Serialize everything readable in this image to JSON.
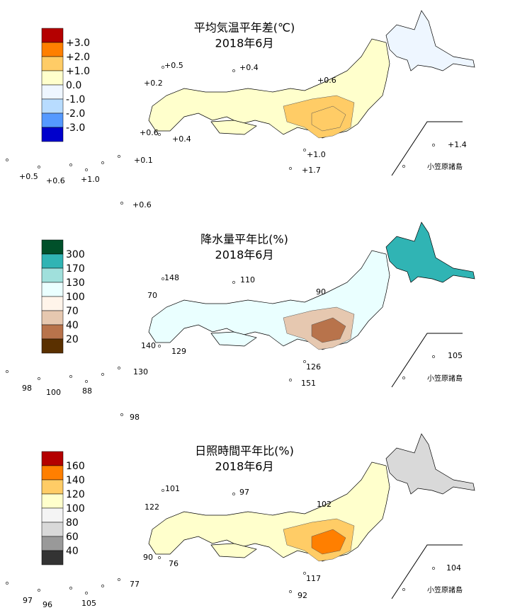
{
  "panels": [
    {
      "title": "平均気温平年差(℃)",
      "subtitle": "2018年6月",
      "legend": [
        {
          "color": "#b40000"
        },
        {
          "color": "#ff7f00"
        },
        {
          "color": "#ffcc66"
        },
        {
          "color": "#ffffcc"
        },
        {
          "color": "#eef6ff"
        },
        {
          "color": "#b8dcff"
        },
        {
          "color": "#5599ff"
        },
        {
          "color": "#0000cc"
        }
      ],
      "legend_labels": [
        "+3.0",
        "+2.0",
        "+1.0",
        "0.0",
        "-1.0",
        "-2.0",
        "-3.0"
      ],
      "map_colors": {
        "north": "#eef6ff",
        "main": "#ffffcc",
        "region": "#ffcc66",
        "core": "#ffcc66"
      },
      "stations": [
        "+0.5",
        "+0.4",
        "+0.2",
        "+0.6",
        "+0.6",
        "+0.4",
        "+0.1",
        "+1.0",
        "+1.4",
        "+1.7",
        "+0.5",
        "+0.6",
        "+1.0",
        "+0.6"
      ],
      "inset_label": "小笠原諸島"
    },
    {
      "title": "降水量平年比(%)",
      "subtitle": "2018年6月",
      "legend": [
        {
          "color": "#00502a"
        },
        {
          "color": "#30b4b4"
        },
        {
          "color": "#a0e0dc"
        },
        {
          "color": "#eaffff"
        },
        {
          "color": "#fff4ea"
        },
        {
          "color": "#e6c8b0"
        },
        {
          "color": "#b8734b"
        },
        {
          "color": "#5a3000"
        }
      ],
      "legend_labels": [
        "300",
        "170",
        "130",
        "100",
        "70",
        "40",
        "20"
      ],
      "map_colors": {
        "north": "#30b4b4",
        "main": "#eaffff",
        "region": "#e6c8b0",
        "core": "#b8734b"
      },
      "stations": [
        "148",
        "110",
        "70",
        "90",
        "140",
        "129",
        "130",
        "126",
        "105",
        "151",
        "98",
        "100",
        "88",
        "98"
      ],
      "inset_label": "小笠原諸島"
    },
    {
      "title": "日照時間平年比(%)",
      "subtitle": "2018年6月",
      "legend": [
        {
          "color": "#b40000"
        },
        {
          "color": "#ff7f00"
        },
        {
          "color": "#ffcc66"
        },
        {
          "color": "#ffffcc"
        },
        {
          "color": "#f4f4f4"
        },
        {
          "color": "#d9d9d9"
        },
        {
          "color": "#999999"
        },
        {
          "color": "#333333"
        }
      ],
      "legend_labels": [
        "160",
        "140",
        "120",
        "100",
        "80",
        "60",
        "40"
      ],
      "map_colors": {
        "north": "#d9d9d9",
        "main": "#ffffcc",
        "region": "#ffcc66",
        "core": "#ff7f00"
      },
      "stations": [
        "101",
        "97",
        "122",
        "102",
        "90",
        "76",
        "77",
        "117",
        "104",
        "92",
        "97",
        "96",
        "105"
      ],
      "inset_label": "小笠原諸島"
    }
  ]
}
